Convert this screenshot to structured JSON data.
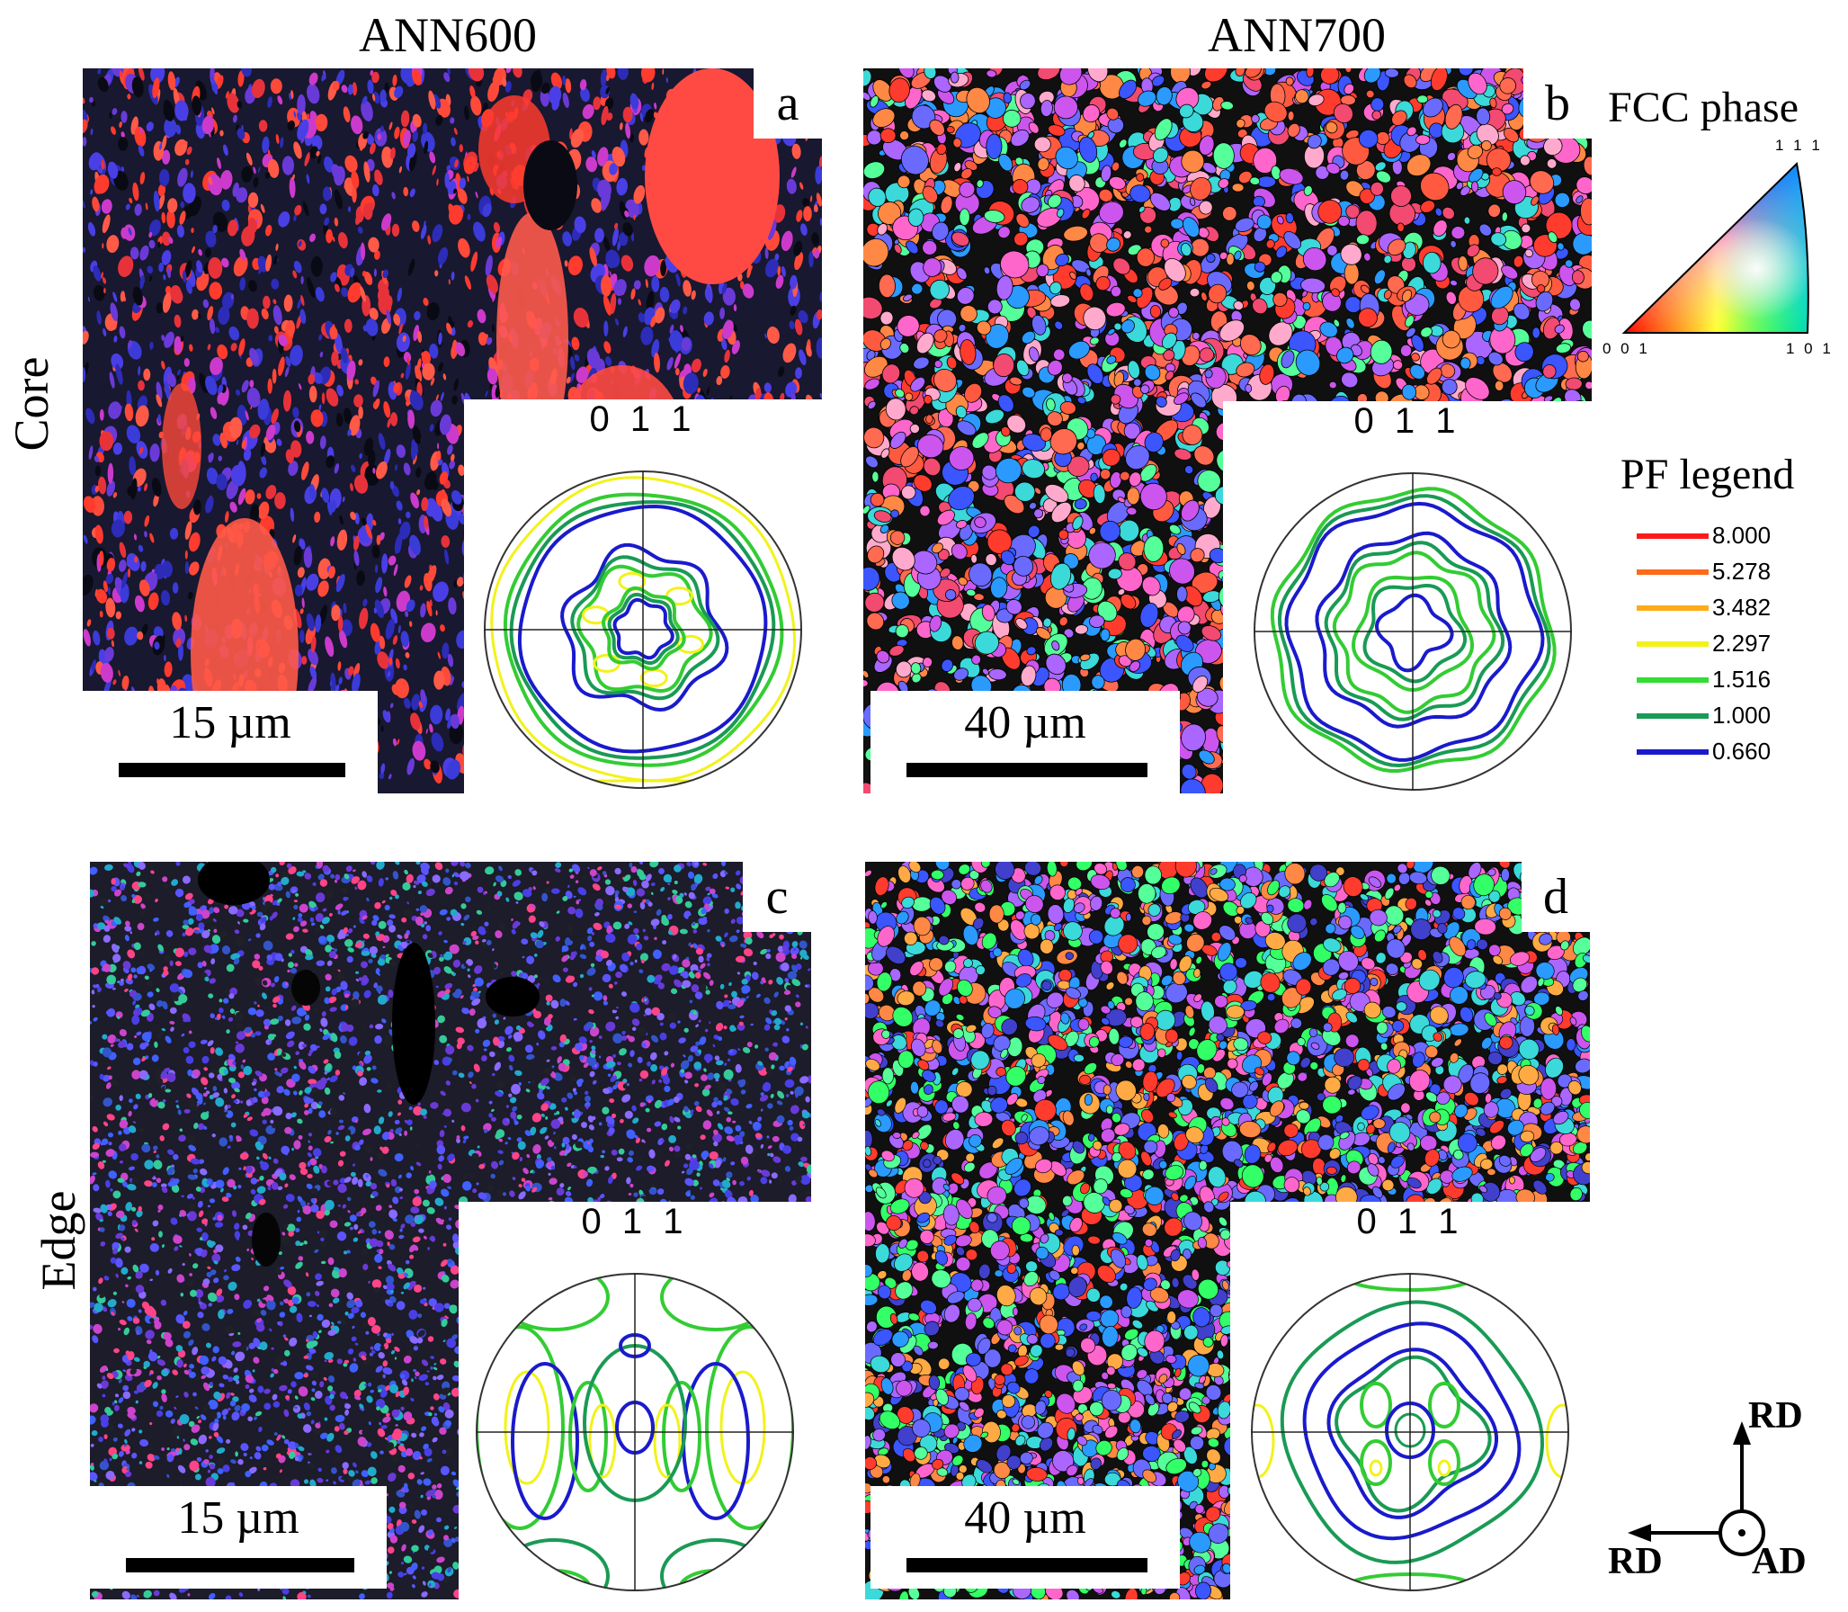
{
  "columns": [
    "ANN600",
    "ANN700"
  ],
  "rows": [
    "Core",
    "Edge"
  ],
  "panels": [
    {
      "letter": "a",
      "scale": "15 µm",
      "pf_label": "0 1 1"
    },
    {
      "letter": "b",
      "scale": "40 µm",
      "pf_label": "0 1 1"
    },
    {
      "letter": "c",
      "scale": "15 µm",
      "pf_label": "0 1 1"
    },
    {
      "letter": "d",
      "scale": "40 µm",
      "pf_label": "0 1 1"
    }
  ],
  "ipf_key": {
    "title": "FCC phase",
    "corners": {
      "top": "1 1 1",
      "left": "0 0 1",
      "right": "1 0 1"
    }
  },
  "pf_legend": {
    "title": "PF legend",
    "levels": [
      {
        "value": "8.000",
        "color": "#ff1a1a"
      },
      {
        "value": "5.278",
        "color": "#ff6a1a"
      },
      {
        "value": "3.482",
        "color": "#ffaa1a"
      },
      {
        "value": "2.297",
        "color": "#f2f21a"
      },
      {
        "value": "1.516",
        "color": "#33dd33"
      },
      {
        "value": "1.000",
        "color": "#1a9a55"
      },
      {
        "value": "0.660",
        "color": "#1a1acc"
      }
    ]
  },
  "axes": {
    "up": "RD",
    "left": "RD",
    "out": "AD"
  },
  "colors": {
    "blue": "#1a1acc",
    "green": "#33cc33",
    "darkgreen": "#1a9a55",
    "yellow": "#f2f21a"
  }
}
